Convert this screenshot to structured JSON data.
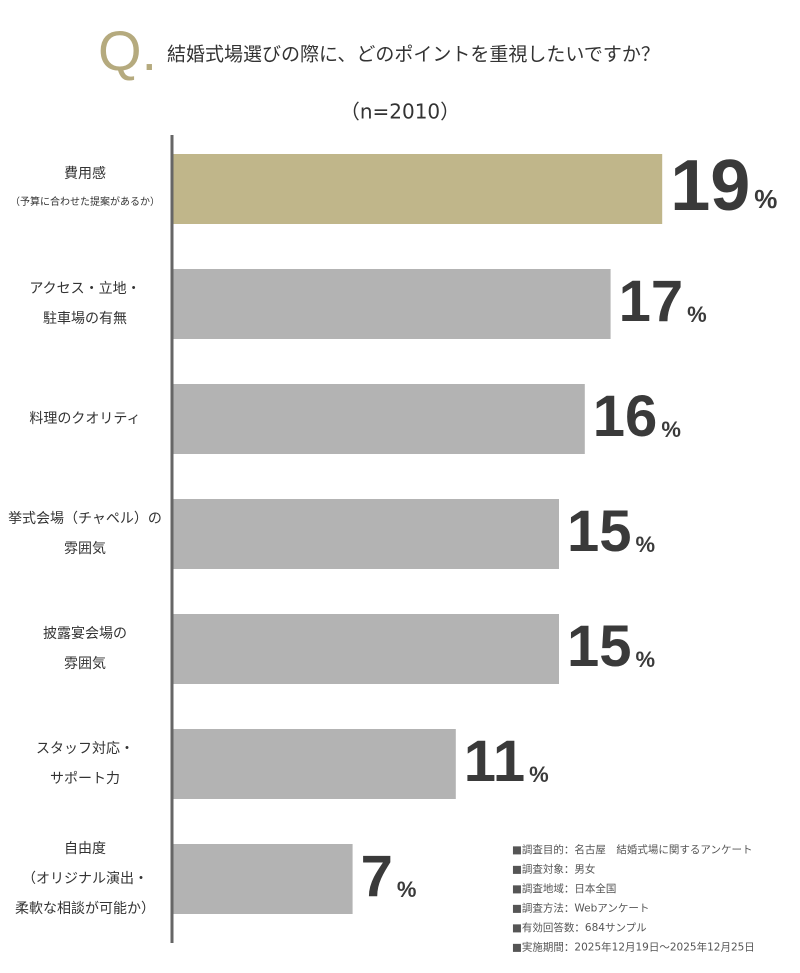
{
  "chart_data": {
    "type": "bar",
    "orientation": "horizontal",
    "title_mark": "Q.",
    "title": "結婚式場選びの際に、どのポイントを重視したいですか？",
    "subtitle": "（n=2010）",
    "categories": [
      [
        "費用感"
      ],
      [
        "アクセス・立地・",
        "駐車場の有無"
      ],
      [
        "料理のクオリティ"
      ],
      [
        "挙式会場（チャペル）の",
        "雰囲気"
      ],
      [
        "披露宴会場の",
        "雰囲気"
      ],
      [
        "スタッフ対応・",
        "サポート力"
      ],
      [
        "自由度",
        "（オリジナル演出・",
        "柔軟な相談が可能か）"
      ]
    ],
    "category_notes": [
      "（予算に合わせた提案があるか）",
      null,
      null,
      null,
      null,
      null,
      null
    ],
    "values": [
      19,
      17,
      16,
      15,
      15,
      11,
      7
    ],
    "unit": "%",
    "colors": [
      "#c0b68a",
      "#b3b3b3",
      "#b3b3b3",
      "#b3b3b3",
      "#b3b3b3",
      "#b3b3b3",
      "#b3b3b3"
    ],
    "xlim": [
      0,
      20
    ],
    "notes": [
      "■調査目的：名古屋　結婚式場に関するアンケート",
      "■調査対象：男女",
      "■調査地域：日本全国",
      "■調査方法：Webアンケート",
      "■有効回答数：684サンプル",
      "■実施期間：2025年12月19日〜2025年12月25日"
    ]
  }
}
